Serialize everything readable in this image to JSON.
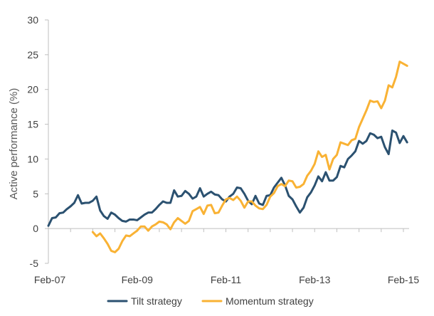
{
  "chart_data": {
    "type": "line",
    "title": "",
    "xlabel": "",
    "ylabel": "Active performance (%)",
    "ylim": [
      -5,
      30
    ],
    "yticks": [
      -5,
      0,
      5,
      10,
      15,
      20,
      25,
      30
    ],
    "xlim": [
      "2007-02",
      "2015-02"
    ],
    "xticks": [
      "Feb-07",
      "Feb-09",
      "Feb-11",
      "Feb-13",
      "Feb-15"
    ],
    "grid": false,
    "legend": "bottom",
    "series": [
      {
        "name": "Tilt strategy",
        "color": "#2b5170",
        "points": [
          [
            "2007-02",
            0.4
          ],
          [
            "2007-03",
            1.5
          ],
          [
            "2007-04",
            1.6
          ],
          [
            "2007-05",
            2.2
          ],
          [
            "2007-06",
            2.3
          ],
          [
            "2007-07",
            2.8
          ],
          [
            "2007-08",
            3.2
          ],
          [
            "2007-09",
            3.7
          ],
          [
            "2007-10",
            4.8
          ],
          [
            "2007-11",
            3.6
          ],
          [
            "2007-12",
            3.7
          ],
          [
            "2008-01",
            3.7
          ],
          [
            "2008-02",
            4.0
          ],
          [
            "2008-03",
            4.6
          ],
          [
            "2008-04",
            2.6
          ],
          [
            "2008-05",
            1.8
          ],
          [
            "2008-06",
            1.4
          ],
          [
            "2008-07",
            2.3
          ],
          [
            "2008-08",
            2.0
          ],
          [
            "2008-09",
            1.5
          ],
          [
            "2008-10",
            1.1
          ],
          [
            "2008-11",
            1.0
          ],
          [
            "2008-12",
            1.3
          ],
          [
            "2009-01",
            1.3
          ],
          [
            "2009-02",
            1.2
          ],
          [
            "2009-03",
            1.6
          ],
          [
            "2009-04",
            2.0
          ],
          [
            "2009-05",
            2.3
          ],
          [
            "2009-06",
            2.3
          ],
          [
            "2009-07",
            2.8
          ],
          [
            "2009-08",
            3.4
          ],
          [
            "2009-09",
            3.9
          ],
          [
            "2009-10",
            3.7
          ],
          [
            "2009-11",
            3.7
          ],
          [
            "2009-12",
            5.5
          ],
          [
            "2010-01",
            4.6
          ],
          [
            "2010-02",
            4.7
          ],
          [
            "2010-03",
            5.4
          ],
          [
            "2010-04",
            5.0
          ],
          [
            "2010-05",
            4.3
          ],
          [
            "2010-06",
            4.6
          ],
          [
            "2010-07",
            5.8
          ],
          [
            "2010-08",
            4.6
          ],
          [
            "2010-09",
            5.0
          ],
          [
            "2010-10",
            5.3
          ],
          [
            "2010-11",
            4.9
          ],
          [
            "2010-12",
            4.8
          ],
          [
            "2011-01",
            4.2
          ],
          [
            "2011-02",
            3.9
          ],
          [
            "2011-03",
            4.6
          ],
          [
            "2011-04",
            5.0
          ],
          [
            "2011-05",
            5.9
          ],
          [
            "2011-06",
            5.8
          ],
          [
            "2011-07",
            5.0
          ],
          [
            "2011-08",
            4.0
          ],
          [
            "2011-09",
            3.5
          ],
          [
            "2011-10",
            4.7
          ],
          [
            "2011-11",
            3.6
          ],
          [
            "2011-12",
            3.4
          ],
          [
            "2012-01",
            4.7
          ],
          [
            "2012-02",
            4.8
          ],
          [
            "2012-03",
            5.9
          ],
          [
            "2012-04",
            6.6
          ],
          [
            "2012-05",
            7.3
          ],
          [
            "2012-06",
            6.2
          ],
          [
            "2012-07",
            4.7
          ],
          [
            "2012-08",
            4.2
          ],
          [
            "2012-09",
            3.2
          ],
          [
            "2012-10",
            2.3
          ],
          [
            "2012-11",
            3.0
          ],
          [
            "2012-12",
            4.5
          ],
          [
            "2013-01",
            5.2
          ],
          [
            "2013-02",
            6.2
          ],
          [
            "2013-03",
            7.5
          ],
          [
            "2013-04",
            6.8
          ],
          [
            "2013-05",
            8.1
          ],
          [
            "2013-06",
            6.9
          ],
          [
            "2013-07",
            6.9
          ],
          [
            "2013-08",
            7.4
          ],
          [
            "2013-09",
            9.0
          ],
          [
            "2013-10",
            8.8
          ],
          [
            "2013-11",
            10.0
          ],
          [
            "2013-12",
            10.5
          ],
          [
            "2014-01",
            11.1
          ],
          [
            "2014-02",
            12.6
          ],
          [
            "2014-03",
            12.2
          ],
          [
            "2014-04",
            12.6
          ],
          [
            "2014-05",
            13.7
          ],
          [
            "2014-06",
            13.5
          ],
          [
            "2014-07",
            13.0
          ],
          [
            "2014-08",
            13.2
          ],
          [
            "2014-09",
            11.7
          ],
          [
            "2014-10",
            10.7
          ],
          [
            "2014-11",
            14.1
          ],
          [
            "2014-12",
            13.8
          ],
          [
            "2015-01",
            12.3
          ],
          [
            "2015-02",
            13.3
          ],
          [
            "2015-03",
            12.4
          ]
        ]
      },
      {
        "name": "Momentum strategy",
        "color": "#f9b234",
        "points": [
          [
            "2008-02",
            -0.5
          ],
          [
            "2008-03",
            -1.1
          ],
          [
            "2008-04",
            -0.7
          ],
          [
            "2008-05",
            -1.4
          ],
          [
            "2008-06",
            -2.2
          ],
          [
            "2008-07",
            -3.2
          ],
          [
            "2008-08",
            -3.4
          ],
          [
            "2008-09",
            -2.9
          ],
          [
            "2008-10",
            -1.8
          ],
          [
            "2008-11",
            -1.0
          ],
          [
            "2008-12",
            -1.1
          ],
          [
            "2009-01",
            -0.7
          ],
          [
            "2009-02",
            -0.3
          ],
          [
            "2009-03",
            0.3
          ],
          [
            "2009-04",
            0.3
          ],
          [
            "2009-05",
            -0.3
          ],
          [
            "2009-06",
            0.3
          ],
          [
            "2009-07",
            0.6
          ],
          [
            "2009-08",
            1.0
          ],
          [
            "2009-09",
            0.9
          ],
          [
            "2009-10",
            0.6
          ],
          [
            "2009-11",
            -0.1
          ],
          [
            "2009-12",
            0.9
          ],
          [
            "2010-01",
            1.5
          ],
          [
            "2010-02",
            1.1
          ],
          [
            "2010-03",
            0.7
          ],
          [
            "2010-04",
            1.1
          ],
          [
            "2010-05",
            2.5
          ],
          [
            "2010-06",
            2.8
          ],
          [
            "2010-07",
            3.1
          ],
          [
            "2010-08",
            2.1
          ],
          [
            "2010-09",
            3.3
          ],
          [
            "2010-10",
            3.4
          ],
          [
            "2010-11",
            2.2
          ],
          [
            "2010-12",
            2.3
          ],
          [
            "2011-01",
            3.3
          ],
          [
            "2011-02",
            4.2
          ],
          [
            "2011-03",
            4.4
          ],
          [
            "2011-04",
            4.1
          ],
          [
            "2011-05",
            4.6
          ],
          [
            "2011-06",
            4.0
          ],
          [
            "2011-07",
            3.0
          ],
          [
            "2011-08",
            3.9
          ],
          [
            "2011-09",
            3.9
          ],
          [
            "2011-10",
            3.3
          ],
          [
            "2011-11",
            2.9
          ],
          [
            "2011-12",
            2.8
          ],
          [
            "2012-01",
            3.4
          ],
          [
            "2012-02",
            4.6
          ],
          [
            "2012-03",
            5.1
          ],
          [
            "2012-04",
            6.1
          ],
          [
            "2012-05",
            6.4
          ],
          [
            "2012-06",
            6.1
          ],
          [
            "2012-07",
            6.9
          ],
          [
            "2012-08",
            6.8
          ],
          [
            "2012-09",
            5.9
          ],
          [
            "2012-10",
            6.0
          ],
          [
            "2012-11",
            6.4
          ],
          [
            "2012-12",
            7.6
          ],
          [
            "2013-01",
            8.3
          ],
          [
            "2013-02",
            9.3
          ],
          [
            "2013-03",
            11.1
          ],
          [
            "2013-04",
            10.3
          ],
          [
            "2013-05",
            10.6
          ],
          [
            "2013-06",
            8.5
          ],
          [
            "2013-07",
            10.0
          ],
          [
            "2013-08",
            10.6
          ],
          [
            "2013-09",
            12.4
          ],
          [
            "2013-10",
            12.2
          ],
          [
            "2013-11",
            12.0
          ],
          [
            "2013-12",
            12.7
          ],
          [
            "2014-01",
            12.9
          ],
          [
            "2014-02",
            14.6
          ],
          [
            "2014-03",
            15.8
          ],
          [
            "2014-04",
            17.0
          ],
          [
            "2014-05",
            18.4
          ],
          [
            "2014-06",
            18.2
          ],
          [
            "2014-07",
            18.3
          ],
          [
            "2014-08",
            17.3
          ],
          [
            "2014-09",
            18.4
          ],
          [
            "2014-10",
            20.6
          ],
          [
            "2014-11",
            20.3
          ],
          [
            "2014-12",
            21.8
          ],
          [
            "2015-01",
            24.0
          ],
          [
            "2015-02",
            23.7
          ],
          [
            "2015-03",
            23.4
          ]
        ]
      }
    ]
  }
}
